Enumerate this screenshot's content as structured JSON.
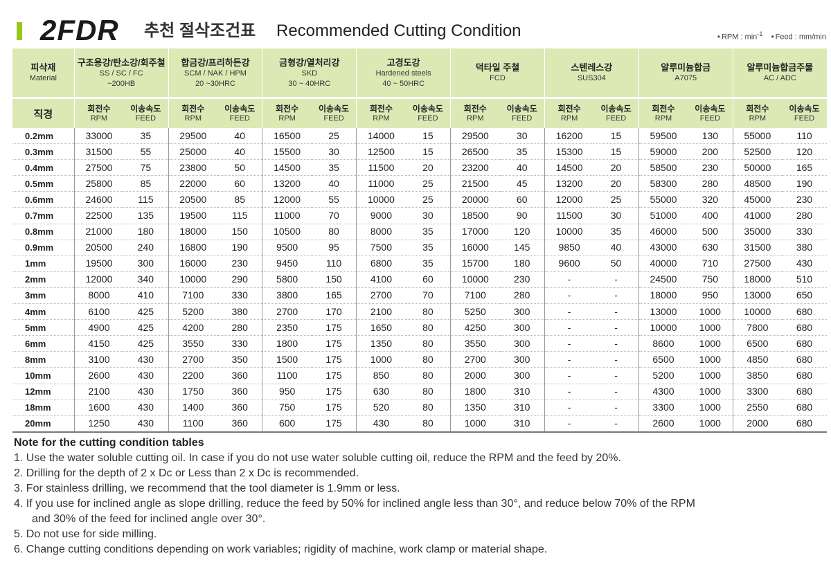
{
  "header": {
    "model": "2FDR",
    "title_ko": "추천 절삭조건표",
    "title_en": "Recommended Cutting Condition",
    "units_rpm": "RPM : min",
    "units_rpm_sup": "-1",
    "units_feed": "Feed : mm/min",
    "accent_color": "#9bc41c"
  },
  "table": {
    "material_label_ko": "피삭재",
    "material_label_en": "Material",
    "diameter_label": "직경",
    "col_rpm_ko": "회전수",
    "col_rpm_en": "RPM",
    "col_feed_ko": "이송속도",
    "col_feed_en": "FEED",
    "materials": [
      {
        "ko": "구조용강/탄소강/회주철",
        "en1": "SS / SC / FC",
        "en2": "~200HB"
      },
      {
        "ko": "합금강/프리하든강",
        "en1": "SCM / NAK / HPM",
        "en2": "20 ~30HRC"
      },
      {
        "ko": "금형강/열처리강",
        "en1": "SKD",
        "en2": "30 ~ 40HRC"
      },
      {
        "ko": "고경도강",
        "en1": "Hardened steels",
        "en2": "40 ~ 50HRC"
      },
      {
        "ko": "덕타일 주철",
        "en1": "FCD",
        "en2": ""
      },
      {
        "ko": "스텐레스강",
        "en1": "SUS304",
        "en2": ""
      },
      {
        "ko": "알루미늄합금",
        "en1": "A7075",
        "en2": ""
      },
      {
        "ko": "알루미늄합금주물",
        "en1": "AC / ADC",
        "en2": ""
      }
    ],
    "rows": [
      {
        "dia": "0.2mm",
        "v": [
          "33000",
          "35",
          "29500",
          "40",
          "16500",
          "25",
          "14000",
          "15",
          "29500",
          "30",
          "16200",
          "15",
          "59500",
          "130",
          "55000",
          "110"
        ]
      },
      {
        "dia": "0.3mm",
        "v": [
          "31500",
          "55",
          "25000",
          "40",
          "15500",
          "30",
          "12500",
          "15",
          "26500",
          "35",
          "15300",
          "15",
          "59000",
          "200",
          "52500",
          "120"
        ]
      },
      {
        "dia": "0.4mm",
        "v": [
          "27500",
          "75",
          "23800",
          "50",
          "14500",
          "35",
          "11500",
          "20",
          "23200",
          "40",
          "14500",
          "20",
          "58500",
          "230",
          "50000",
          "165"
        ]
      },
      {
        "dia": "0.5mm",
        "v": [
          "25800",
          "85",
          "22000",
          "60",
          "13200",
          "40",
          "11000",
          "25",
          "21500",
          "45",
          "13200",
          "20",
          "58300",
          "280",
          "48500",
          "190"
        ]
      },
      {
        "dia": "0.6mm",
        "v": [
          "24600",
          "115",
          "20500",
          "85",
          "12000",
          "55",
          "10000",
          "25",
          "20000",
          "60",
          "12000",
          "25",
          "55000",
          "320",
          "45000",
          "230"
        ]
      },
      {
        "dia": "0.7mm",
        "v": [
          "22500",
          "135",
          "19500",
          "115",
          "11000",
          "70",
          "9000",
          "30",
          "18500",
          "90",
          "11500",
          "30",
          "51000",
          "400",
          "41000",
          "280"
        ]
      },
      {
        "dia": "0.8mm",
        "v": [
          "21000",
          "180",
          "18000",
          "150",
          "10500",
          "80",
          "8000",
          "35",
          "17000",
          "120",
          "10000",
          "35",
          "46000",
          "500",
          "35000",
          "330"
        ]
      },
      {
        "dia": "0.9mm",
        "v": [
          "20500",
          "240",
          "16800",
          "190",
          "9500",
          "95",
          "7500",
          "35",
          "16000",
          "145",
          "9850",
          "40",
          "43000",
          "630",
          "31500",
          "380"
        ]
      },
      {
        "dia": "1mm",
        "v": [
          "19500",
          "300",
          "16000",
          "230",
          "9450",
          "110",
          "6800",
          "35",
          "15700",
          "180",
          "9600",
          "50",
          "40000",
          "710",
          "27500",
          "430"
        ]
      },
      {
        "dia": "2mm",
        "v": [
          "12000",
          "340",
          "10000",
          "290",
          "5800",
          "150",
          "4100",
          "60",
          "10000",
          "230",
          "-",
          "-",
          "24500",
          "750",
          "18000",
          "510"
        ]
      },
      {
        "dia": "3mm",
        "v": [
          "8000",
          "410",
          "7100",
          "330",
          "3800",
          "165",
          "2700",
          "70",
          "7100",
          "280",
          "-",
          "-",
          "18000",
          "950",
          "13000",
          "650"
        ]
      },
      {
        "dia": "4mm",
        "v": [
          "6100",
          "425",
          "5200",
          "380",
          "2700",
          "170",
          "2100",
          "80",
          "5250",
          "300",
          "-",
          "-",
          "13000",
          "1000",
          "10000",
          "680"
        ]
      },
      {
        "dia": "5mm",
        "v": [
          "4900",
          "425",
          "4200",
          "280",
          "2350",
          "175",
          "1650",
          "80",
          "4250",
          "300",
          "-",
          "-",
          "10000",
          "1000",
          "7800",
          "680"
        ]
      },
      {
        "dia": "6mm",
        "v": [
          "4150",
          "425",
          "3550",
          "330",
          "1800",
          "175",
          "1350",
          "80",
          "3550",
          "300",
          "-",
          "-",
          "8600",
          "1000",
          "6500",
          "680"
        ]
      },
      {
        "dia": "8mm",
        "v": [
          "3100",
          "430",
          "2700",
          "350",
          "1500",
          "175",
          "1000",
          "80",
          "2700",
          "300",
          "-",
          "-",
          "6500",
          "1000",
          "4850",
          "680"
        ]
      },
      {
        "dia": "10mm",
        "v": [
          "2600",
          "430",
          "2200",
          "360",
          "1100",
          "175",
          "850",
          "80",
          "2000",
          "300",
          "-",
          "-",
          "5200",
          "1000",
          "3850",
          "680"
        ]
      },
      {
        "dia": "12mm",
        "v": [
          "2100",
          "430",
          "1750",
          "360",
          "950",
          "175",
          "630",
          "80",
          "1800",
          "310",
          "-",
          "-",
          "4300",
          "1000",
          "3300",
          "680"
        ]
      },
      {
        "dia": "18mm",
        "v": [
          "1600",
          "430",
          "1400",
          "360",
          "750",
          "175",
          "520",
          "80",
          "1350",
          "310",
          "-",
          "-",
          "3300",
          "1000",
          "2550",
          "680"
        ]
      },
      {
        "dia": "20mm",
        "v": [
          "1250",
          "430",
          "1100",
          "360",
          "600",
          "175",
          "430",
          "80",
          "1000",
          "310",
          "-",
          "-",
          "2600",
          "1000",
          "2000",
          "680"
        ]
      }
    ]
  },
  "notes": {
    "title": "Note for the cutting condition tables",
    "items": [
      "1. Use the water soluble cutting oil. In case if you do not use water soluble cutting oil, reduce the RPM and the feed by 20%.",
      "2. Drilling for the depth of 2 x Dc or Less than 2 x Dc is recommended.",
      "3. For stainless drilling, we recommend that the tool diameter is 1.9mm or less.",
      "4. If you use for inclined angle as slope drilling, reduce the feed by 50% for inclined angle less than 30°, and reduce below 70% of the RPM",
      "5. Do not use for side milling.",
      "6. Change cutting conditions depending on work variables; rigidity of machine, work clamp or material shape."
    ],
    "item4_cont": "and 30% of the feed for inclined angle over 30°."
  }
}
